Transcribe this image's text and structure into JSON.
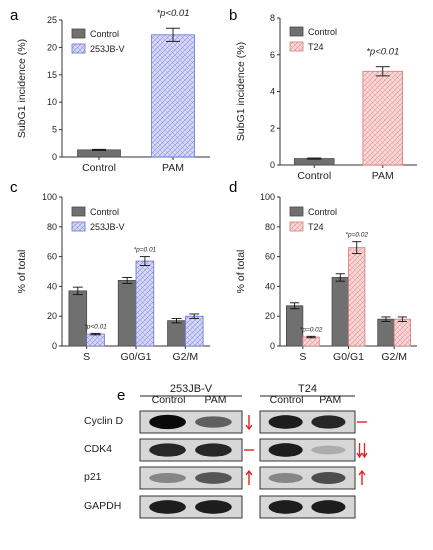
{
  "colors": {
    "control": "#707070",
    "jb_fill": "#cfd2f6",
    "jb_edge": "#6b6fd8",
    "t24_fill": "#f9d0d0",
    "t24_edge": "#d77a7a",
    "arrow": "#e02020",
    "axis": "#333333"
  },
  "chart_data": [
    {
      "panel": "a",
      "type": "bar",
      "categories": [
        "Control",
        "PAM"
      ],
      "series": [
        {
          "name": "Control",
          "values": [
            1.3,
            null
          ],
          "errors": [
            0.1,
            null
          ]
        },
        {
          "name": "253JB-V",
          "values": [
            null,
            22.3
          ],
          "errors": [
            null,
            1.2
          ]
        }
      ],
      "ylabel": "SubG1 incidence (%)",
      "ylim": [
        0,
        25
      ],
      "yticks": [
        "0",
        "5",
        "10",
        "15",
        "20",
        "25"
      ],
      "annotations": [
        {
          "category": "PAM",
          "text": "*p<0.01"
        }
      ]
    },
    {
      "panel": "b",
      "type": "bar",
      "categories": [
        "Control",
        "PAM"
      ],
      "series": [
        {
          "name": "Control",
          "values": [
            0.35,
            null
          ],
          "errors": [
            0.03,
            null
          ]
        },
        {
          "name": "T24",
          "values": [
            null,
            5.1
          ],
          "errors": [
            null,
            0.25
          ]
        }
      ],
      "ylabel": "SubG1 incidence (%)",
      "ylim": [
        0,
        8
      ],
      "yticks": [
        "0",
        "2",
        "4",
        "6",
        "8"
      ],
      "annotations": [
        {
          "category": "PAM",
          "text": "*p<0.01"
        }
      ]
    },
    {
      "panel": "c",
      "type": "bar",
      "categories": [
        "S",
        "G0/G1",
        "G2/M"
      ],
      "series": [
        {
          "name": "Control",
          "values": [
            37,
            44,
            17
          ],
          "errors": [
            2.5,
            2,
            1.5
          ]
        },
        {
          "name": "253JB-V",
          "values": [
            8,
            57,
            20
          ],
          "errors": [
            0.5,
            3,
            1.5
          ]
        }
      ],
      "ylabel": "% of total",
      "ylim": [
        0,
        100
      ],
      "yticks": [
        "0",
        "20",
        "40",
        "60",
        "80",
        "100"
      ],
      "annotations": [
        {
          "category": "S",
          "series": 1,
          "text": "*p<0.01"
        },
        {
          "category": "G0/G1",
          "series": 1,
          "text": "*p=0.01"
        }
      ]
    },
    {
      "panel": "d",
      "type": "bar",
      "categories": [
        "S",
        "G0/G1",
        "G2/M"
      ],
      "series": [
        {
          "name": "Control",
          "values": [
            27,
            46,
            18
          ],
          "errors": [
            2,
            2.5,
            1.5
          ]
        },
        {
          "name": "T24",
          "values": [
            6,
            66,
            18
          ],
          "errors": [
            0.5,
            4,
            1.5
          ]
        }
      ],
      "ylabel": "% of total",
      "ylim": [
        0,
        100
      ],
      "yticks": [
        "0",
        "20",
        "40",
        "60",
        "80",
        "100"
      ],
      "annotations": [
        {
          "category": "S",
          "series": 1,
          "text": "*p=0.02"
        },
        {
          "category": "G0/G1",
          "series": 1,
          "text": "*p=0.02"
        }
      ]
    }
  ],
  "blot": {
    "panel": "e",
    "groups": [
      {
        "name": "253JB-V",
        "lanes": [
          "Control",
          "PAM"
        ]
      },
      {
        "name": "T24",
        "lanes": [
          "Control",
          "PAM"
        ]
      }
    ],
    "proteins": [
      {
        "name": "Cyclin D",
        "changes": [
          "down",
          "none"
        ]
      },
      {
        "name": "CDK4",
        "changes": [
          "none",
          "double-down"
        ]
      },
      {
        "name": "p21",
        "changes": [
          "up",
          "up"
        ]
      },
      {
        "name": "GAPDH",
        "changes": [
          "",
          ""
        ]
      }
    ]
  }
}
